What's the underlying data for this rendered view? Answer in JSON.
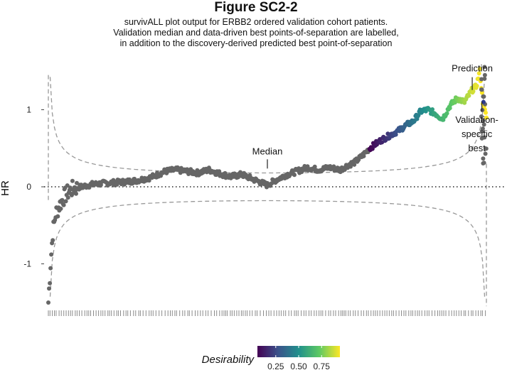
{
  "title": "Figure SC2-2",
  "subtitle": [
    "survivALL plot output for ERBB2 ordered validation cohort patients.",
    "Validation median and data-driven best points-of-separation are labelled,",
    "in addition to the discovery-derived predicted best point-of-separation"
  ],
  "chart_data": {
    "type": "scatter",
    "title": "Figure SC2-2",
    "xlabel": "",
    "ylabel": "HR",
    "x_range": [
      0,
      600
    ],
    "ylim": [
      -1.55,
      1.6
    ],
    "y_ticks": [
      {
        "value": 1,
        "label": "1"
      },
      {
        "value": 0,
        "label": "0"
      },
      {
        "value": -1,
        "label": "-1"
      }
    ],
    "reference_line": {
      "y": 0,
      "style": "dotted"
    },
    "threshold_bands": {
      "style": "dashed",
      "upper_min": 0.36,
      "lower_max": -0.36,
      "description": "significance threshold curves, diverging at both ends of the ordering"
    },
    "hr_profile": [
      [
        0,
        -1.5
      ],
      [
        3,
        -1.0
      ],
      [
        6,
        -0.6
      ],
      [
        10,
        -0.35
      ],
      [
        15,
        -0.25
      ],
      [
        20,
        -0.15
      ],
      [
        28,
        -0.06
      ],
      [
        35,
        -0.02
      ],
      [
        45,
        0.0
      ],
      [
        60,
        0.03
      ],
      [
        80,
        0.05
      ],
      [
        100,
        0.06
      ],
      [
        120,
        0.08
      ],
      [
        140,
        0.12
      ],
      [
        160,
        0.2
      ],
      [
        175,
        0.22
      ],
      [
        190,
        0.2
      ],
      [
        205,
        0.18
      ],
      [
        220,
        0.22
      ],
      [
        235,
        0.17
      ],
      [
        250,
        0.13
      ],
      [
        265,
        0.16
      ],
      [
        280,
        0.1
      ],
      [
        295,
        0.04
      ],
      [
        300,
        0.02
      ],
      [
        310,
        0.08
      ],
      [
        325,
        0.15
      ],
      [
        340,
        0.2
      ],
      [
        355,
        0.25
      ],
      [
        370,
        0.22
      ],
      [
        385,
        0.25
      ],
      [
        400,
        0.22
      ],
      [
        410,
        0.28
      ],
      [
        420,
        0.32
      ],
      [
        430,
        0.4
      ],
      [
        440,
        0.5
      ],
      [
        455,
        0.6
      ],
      [
        470,
        0.68
      ],
      [
        480,
        0.73
      ],
      [
        490,
        0.8
      ],
      [
        500,
        0.85
      ],
      [
        510,
        0.98
      ],
      [
        520,
        1.0
      ],
      [
        530,
        0.95
      ],
      [
        540,
        0.88
      ],
      [
        550,
        1.05
      ],
      [
        560,
        1.15
      ],
      [
        570,
        1.1
      ],
      [
        580,
        1.25
      ],
      [
        586,
        1.3
      ],
      [
        591,
        1.5
      ],
      [
        595,
        1.1
      ],
      [
        600,
        0.9
      ]
    ],
    "desirability_colouring_starts_at": 440,
    "highlight_point": {
      "x": 596,
      "hr": 1.1
    },
    "annotations": [
      {
        "label": "Median",
        "x": 300,
        "y": 0.2
      },
      {
        "label": "Prediction",
        "x": 565,
        "y": 1.33
      },
      {
        "label": "Validation-specific best",
        "lines": [
          "Validation-",
          "specific",
          "best"
        ],
        "x": 586,
        "y": 1.07
      }
    ],
    "rug": "one tick per patient along the bottom of the panel",
    "legend": {
      "title": "Desirability",
      "ticks": [
        "0.25",
        "0.50",
        "0.75"
      ],
      "tick_values": [
        0.25,
        0.5,
        0.75
      ],
      "range": [
        0.05,
        0.95
      ],
      "palette": [
        "#440154",
        "#3b528b",
        "#21908c",
        "#5dc963",
        "#fde725"
      ],
      "placement": "bottom"
    }
  }
}
